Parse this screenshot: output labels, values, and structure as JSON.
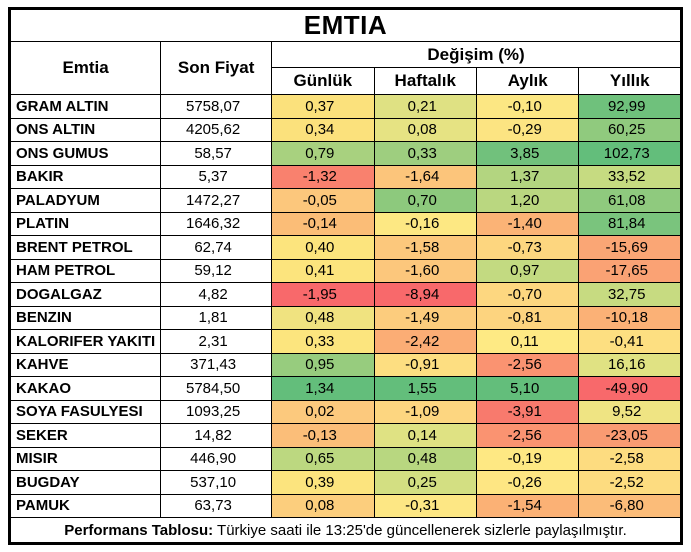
{
  "title": "EMTIA",
  "header": {
    "commodity": "Emtia",
    "last_price": "Son Fiyat",
    "change_group": "Değişim (%)",
    "periods": [
      "Günlük",
      "Haftalık",
      "Aylık",
      "Yıllık"
    ]
  },
  "footer": {
    "label": "Performans Tablosu:",
    "text": " Türkiye saati ile 13:25'de güncellenerek sizlerle paylaşılmıştır."
  },
  "palette": {
    "scale_min_red": "#F8696B",
    "scale_mid_yellow": "#FFEB84",
    "scale_max_green": "#63BE7B"
  },
  "chart_data": {
    "type": "heatmap",
    "title": "EMTIA",
    "columns": [
      "Emtia",
      "Son Fiyat",
      "Günlük",
      "Haftalık",
      "Aylık",
      "Yıllık"
    ],
    "value_unit": "Değişim (%)",
    "rows": [
      {
        "name": "GRAM ALTIN",
        "price": 5758.07,
        "changes": [
          0.37,
          0.21,
          -0.1,
          92.99
        ],
        "colors": [
          "#FBE17C",
          "#DFE183",
          "#FCE783",
          "#6FC17C"
        ]
      },
      {
        "name": "ONS ALTIN",
        "price": 4205.62,
        "changes": [
          0.34,
          0.08,
          -0.29,
          60.25
        ],
        "colors": [
          "#FBE17C",
          "#E6E383",
          "#FCE482",
          "#90CA7E"
        ]
      },
      {
        "name": "ONS GUMUS",
        "price": 58.57,
        "changes": [
          0.79,
          0.33,
          3.85,
          102.73
        ],
        "colors": [
          "#A8D17F",
          "#9ECE7F",
          "#71C17C",
          "#63BE7B"
        ]
      },
      {
        "name": "BAKIR",
        "price": 5.37,
        "changes": [
          -1.32,
          -1.64,
          1.37,
          33.52
        ],
        "colors": [
          "#F9816E",
          "#FCC57B",
          "#B3D580",
          "#C6DB81"
        ]
      },
      {
        "name": "PALADYUM",
        "price": 1472.27,
        "changes": [
          -0.05,
          0.7,
          1.2,
          61.08
        ],
        "colors": [
          "#FCC77C",
          "#8DC97D",
          "#BAD780",
          "#8FCA7E"
        ]
      },
      {
        "name": "PLATIN",
        "price": 1646.32,
        "changes": [
          -0.14,
          -0.16,
          -1.4,
          81.84
        ],
        "colors": [
          "#FBBD77",
          "#FDE883",
          "#FBB376",
          "#7AC47D"
        ]
      },
      {
        "name": "BRENT PETROL",
        "price": 62.74,
        "changes": [
          0.4,
          -1.58,
          -0.73,
          -15.69
        ],
        "colors": [
          "#FCE47D",
          "#FCC87C",
          "#FDD67F",
          "#FAA675"
        ]
      },
      {
        "name": "HAM PETROL",
        "price": 59.12,
        "changes": [
          0.41,
          -1.6,
          0.97,
          -17.65
        ],
        "colors": [
          "#FCE47D",
          "#FCC77C",
          "#C3DA81",
          "#FAA274"
        ]
      },
      {
        "name": "DOGALGAZ",
        "price": 4.82,
        "changes": [
          -1.95,
          -8.94,
          -0.7,
          32.75
        ],
        "colors": [
          "#F8696B",
          "#F8696B",
          "#FDD780",
          "#C7DB81"
        ]
      },
      {
        "name": "BENZIN",
        "price": 1.81,
        "changes": [
          0.48,
          -1.49,
          -0.81,
          -10.18
        ],
        "colors": [
          "#F0E380",
          "#FCCC7D",
          "#FDD47F",
          "#FBB176"
        ]
      },
      {
        "name": "KALORIFER YAKITI",
        "price": 2.31,
        "changes": [
          0.33,
          -2.42,
          0.11,
          -0.41
        ],
        "colors": [
          "#FCE57E",
          "#FBAD75",
          "#FEEA84",
          "#FDDF81"
        ]
      },
      {
        "name": "KAHVE",
        "price": 371.43,
        "changes": [
          0.95,
          -0.91,
          -2.56,
          16.16
        ],
        "colors": [
          "#97CC7E",
          "#FDDE81",
          "#FA9371",
          "#E0E283"
        ]
      },
      {
        "name": "KAKAO",
        "price": 5784.5,
        "changes": [
          1.34,
          1.55,
          5.1,
          -49.9
        ],
        "colors": [
          "#63BE7B",
          "#63BE7B",
          "#63BE7B",
          "#F8696B"
        ]
      },
      {
        "name": "SOYA FASULYESI",
        "price": 1093.25,
        "changes": [
          0.02,
          -1.09,
          -3.91,
          9.52
        ],
        "colors": [
          "#FCC97D",
          "#FDD680",
          "#F87A6D",
          "#EFE483"
        ]
      },
      {
        "name": "SEKER",
        "price": 14.82,
        "changes": [
          -0.13,
          0.14,
          -2.56,
          -23.05
        ],
        "colors": [
          "#FBBE79",
          "#DFE283",
          "#FA9371",
          "#F99B72"
        ]
      },
      {
        "name": "MISIR",
        "price": 446.9,
        "changes": [
          0.65,
          0.48,
          -0.19,
          -2.58
        ],
        "colors": [
          "#BCD880",
          "#B8D780",
          "#FEE883",
          "#FDDC80"
        ]
      },
      {
        "name": "BUGDAY",
        "price": 537.1,
        "changes": [
          0.39,
          0.25,
          -0.26,
          -2.52
        ],
        "colors": [
          "#FCE47E",
          "#D3DF82",
          "#FEE683",
          "#FDDC80"
        ]
      },
      {
        "name": "PAMUK",
        "price": 63.73,
        "changes": [
          0.08,
          -0.31,
          -1.54,
          -6.8
        ],
        "colors": [
          "#FCCE7D",
          "#FDE784",
          "#FBB175",
          "#FBBC79"
        ]
      }
    ]
  }
}
